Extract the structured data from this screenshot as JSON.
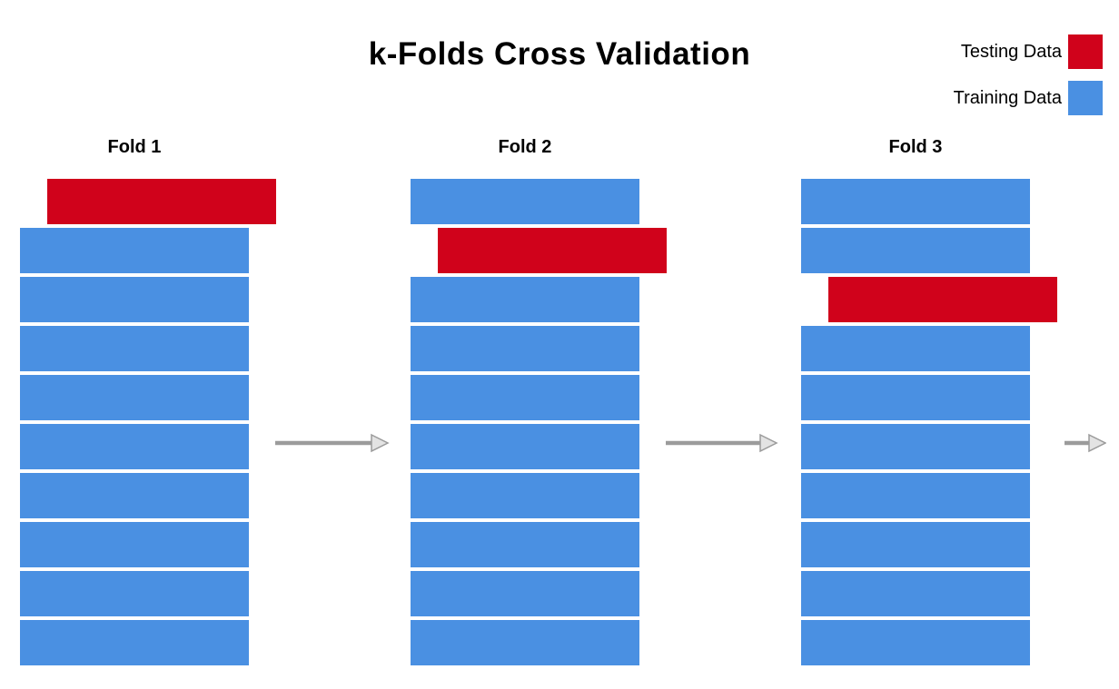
{
  "title": "k-Folds Cross Validation",
  "legend": {
    "items": [
      {
        "id": "testing",
        "label": "Testing Data",
        "color": "#d0021b"
      },
      {
        "id": "training",
        "label": "Training Data",
        "color": "#4a90e2"
      }
    ]
  },
  "diagram": {
    "type": "k-folds-cross-validation",
    "segments_per_fold": 10,
    "folds": [
      {
        "label": "Fold 1",
        "test_segment_index": 0,
        "segments": [
          "test",
          "train",
          "train",
          "train",
          "train",
          "train",
          "train",
          "train",
          "train",
          "train"
        ]
      },
      {
        "label": "Fold 2",
        "test_segment_index": 1,
        "segments": [
          "train",
          "test",
          "train",
          "train",
          "train",
          "train",
          "train",
          "train",
          "train",
          "train"
        ]
      },
      {
        "label": "Fold 3",
        "test_segment_index": 2,
        "segments": [
          "train",
          "train",
          "test",
          "train",
          "train",
          "train",
          "train",
          "train",
          "train",
          "train"
        ]
      }
    ],
    "arrow_color": "#9b9b9b",
    "arrowhead_fill": "#e3e3e3"
  }
}
